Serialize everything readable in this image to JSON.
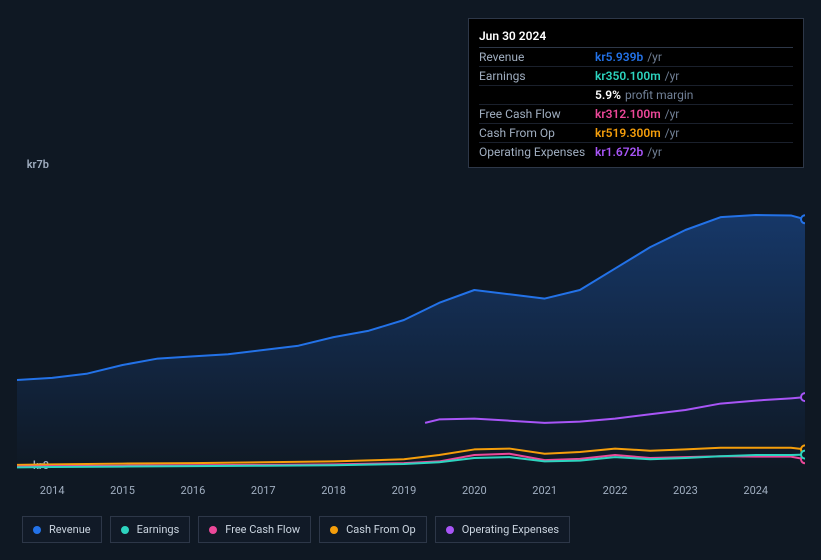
{
  "chart": {
    "type": "line-area",
    "background_color": "#0f1823",
    "text_color": "#a0aec0",
    "y_axis": {
      "top_label": "kr7b",
      "bottom_label": "kr0",
      "min": 0,
      "max": 7000
    },
    "x_axis": {
      "ticks": [
        "2014",
        "2015",
        "2016",
        "2017",
        "2018",
        "2019",
        "2020",
        "2021",
        "2022",
        "2023",
        "2024"
      ]
    },
    "x_range": {
      "min": 2013.5,
      "max": 2024.7
    },
    "hover_x": 2024.5,
    "series": [
      {
        "name": "Revenue",
        "color": "#2372e8",
        "fill": true,
        "fill_opacity_top": 0.35,
        "data": [
          [
            2013.5,
            2100
          ],
          [
            2014,
            2150
          ],
          [
            2014.5,
            2250
          ],
          [
            2015,
            2450
          ],
          [
            2015.5,
            2600
          ],
          [
            2016,
            2650
          ],
          [
            2016.5,
            2700
          ],
          [
            2017,
            2800
          ],
          [
            2017.5,
            2900
          ],
          [
            2018,
            3100
          ],
          [
            2018.5,
            3250
          ],
          [
            2019,
            3500
          ],
          [
            2019.5,
            3900
          ],
          [
            2020,
            4200
          ],
          [
            2020.5,
            4100
          ],
          [
            2021,
            4000
          ],
          [
            2021.5,
            4200
          ],
          [
            2022,
            4700
          ],
          [
            2022.5,
            5200
          ],
          [
            2023,
            5600
          ],
          [
            2023.5,
            5900
          ],
          [
            2024,
            5950
          ],
          [
            2024.5,
            5939
          ],
          [
            2024.7,
            5850
          ]
        ]
      },
      {
        "name": "Operating Expenses",
        "color": "#a855f7",
        "fill": false,
        "data": [
          [
            2019.3,
            1100
          ],
          [
            2019.5,
            1180
          ],
          [
            2020,
            1200
          ],
          [
            2020.5,
            1150
          ],
          [
            2021,
            1100
          ],
          [
            2021.5,
            1130
          ],
          [
            2022,
            1200
          ],
          [
            2022.5,
            1300
          ],
          [
            2023,
            1400
          ],
          [
            2023.5,
            1550
          ],
          [
            2024,
            1620
          ],
          [
            2024.5,
            1672
          ],
          [
            2024.7,
            1700
          ]
        ]
      },
      {
        "name": "Cash From Op",
        "color": "#f59e0b",
        "fill": false,
        "data": [
          [
            2013.5,
            120
          ],
          [
            2014,
            130
          ],
          [
            2015,
            150
          ],
          [
            2016,
            160
          ],
          [
            2017,
            180
          ],
          [
            2018,
            200
          ],
          [
            2019,
            250
          ],
          [
            2019.5,
            350
          ],
          [
            2020,
            480
          ],
          [
            2020.5,
            500
          ],
          [
            2021,
            380
          ],
          [
            2021.5,
            420
          ],
          [
            2022,
            500
          ],
          [
            2022.5,
            450
          ],
          [
            2023,
            480
          ],
          [
            2023.5,
            520
          ],
          [
            2024,
            519
          ],
          [
            2024.5,
            519
          ],
          [
            2024.7,
            480
          ]
        ]
      },
      {
        "name": "Free Cash Flow",
        "color": "#ec4899",
        "fill": false,
        "data": [
          [
            2013.5,
            80
          ],
          [
            2014,
            90
          ],
          [
            2015,
            100
          ],
          [
            2016,
            110
          ],
          [
            2017,
            120
          ],
          [
            2018,
            130
          ],
          [
            2019,
            160
          ],
          [
            2019.5,
            200
          ],
          [
            2020,
            350
          ],
          [
            2020.5,
            380
          ],
          [
            2021,
            230
          ],
          [
            2021.5,
            260
          ],
          [
            2022,
            350
          ],
          [
            2022.5,
            280
          ],
          [
            2023,
            300
          ],
          [
            2023.5,
            320
          ],
          [
            2024,
            312
          ],
          [
            2024.5,
            312
          ],
          [
            2024.7,
            250
          ]
        ]
      },
      {
        "name": "Earnings",
        "color": "#2dd4bf",
        "fill": false,
        "data": [
          [
            2013.5,
            60
          ],
          [
            2014,
            70
          ],
          [
            2015,
            80
          ],
          [
            2016,
            90
          ],
          [
            2017,
            100
          ],
          [
            2018,
            110
          ],
          [
            2019,
            140
          ],
          [
            2019.5,
            180
          ],
          [
            2020,
            280
          ],
          [
            2020.5,
            300
          ],
          [
            2021,
            200
          ],
          [
            2021.5,
            220
          ],
          [
            2022,
            300
          ],
          [
            2022.5,
            250
          ],
          [
            2023,
            280
          ],
          [
            2023.5,
            320
          ],
          [
            2024,
            350
          ],
          [
            2024.5,
            350
          ],
          [
            2024.7,
            360
          ]
        ]
      }
    ],
    "legend_order": [
      "Revenue",
      "Earnings",
      "Free Cash Flow",
      "Cash From Op",
      "Operating Expenses"
    ]
  },
  "tooltip": {
    "title": "Jun 30 2024",
    "rows": [
      {
        "label": "Revenue",
        "value": "kr5.939b",
        "unit": "/yr",
        "color": "#2372e8"
      },
      {
        "label": "Earnings",
        "value": "kr350.100m",
        "unit": "/yr",
        "color": "#2dd4bf"
      },
      {
        "label": "",
        "value": "5.9%",
        "unit": "profit margin",
        "color": "#ffffff"
      },
      {
        "label": "Free Cash Flow",
        "value": "kr312.100m",
        "unit": "/yr",
        "color": "#ec4899"
      },
      {
        "label": "Cash From Op",
        "value": "kr519.300m",
        "unit": "/yr",
        "color": "#f59e0b"
      },
      {
        "label": "Operating Expenses",
        "value": "kr1.672b",
        "unit": "/yr",
        "color": "#a855f7"
      }
    ]
  }
}
